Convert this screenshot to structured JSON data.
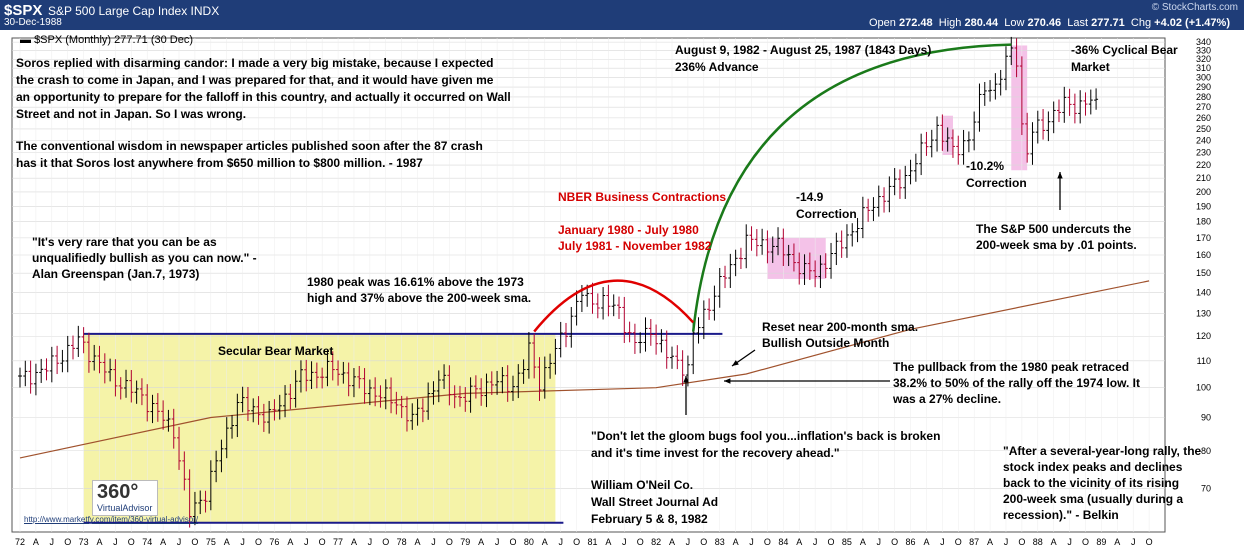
{
  "header": {
    "symbol": "$SPX",
    "name": "S&P 500 Large Cap Index INDX",
    "date": "30-Dec-1988",
    "copyright": "© StockCharts.com",
    "open_label": "Open",
    "open": "272.48",
    "high_label": "High",
    "high": "280.44",
    "low_label": "Low",
    "low": "270.46",
    "last_label": "Last",
    "last": "277.71",
    "chg_label": "Chg",
    "chg": "+4.02 (+1.47%)"
  },
  "legend": "$SPX (Monthly) 277.71 (30 Dec)",
  "logo": {
    "number": "360°",
    "text": "VirtualAdvisor"
  },
  "url": "http://www.marketfy.com/item/360-virtual-advisor/",
  "annotations": {
    "soros_1": "Soros replied with disarming candor: I made a very big mistake, because I expected",
    "soros_2": "the crash to come in Japan, and I was prepared for that, and it would have given me",
    "soros_3": "an opportunity to prepare for the falloff in this country, and actually it occurred on Wall",
    "soros_4": "Street and not in Japan. So I was wrong.",
    "soros_5": "The conventional wisdom in newspaper articles published soon after the 87 crash",
    "soros_6": "has it that Soros lost anywhere from $650 million to $800 million. - 1987",
    "greenspan_1": "\"It's very rare that you can be as",
    "greenspan_2": "unqualifiedly bullish as you can now.\" -",
    "greenspan_3": "Alan Greenspan (Jan.7, 1973)",
    "peak_1": "1980 peak was 16.61% above the 1973",
    "peak_2": "high and 37% above the 200-week sma.",
    "secular": "Secular Bear Market",
    "nber_title": "NBER Business Contractions",
    "nber_1": "January 1980 - July 1980",
    "nber_2": "July 1981 - November 1982",
    "bull_1": "August 9, 1982 - August 25, 1987 (1843 Days)",
    "bull_2": "236% Advance",
    "corr149_1": "-14.9",
    "corr149_2": "Correction",
    "corr102_1": "-10.2%",
    "corr102_2": "Correction",
    "bear36_1": "-36% Cyclical Bear",
    "bear36_2": "Market",
    "undercut_1": "The S&P 500 undercuts the",
    "undercut_2": "200-week sma by .01 points.",
    "reset_1": "Reset near 200-month sma.",
    "reset_2": "Bullish Outside Month",
    "pullback_1": "The pullback from the 1980 peak retraced",
    "pullback_2": "38.2% to 50% of the rally off the 1974 low. It",
    "pullback_3": "was a 27% decline.",
    "oneil_1": "\"Don't let the gloom bugs fool you...inflation's back is broken",
    "oneil_2": "and it's time invest for the recovery ahead.\"",
    "oneil_3": "William O'Neil Co.",
    "oneil_4": "Wall Street Journal Ad",
    "oneil_5": "February 5 & 8, 1982",
    "belkin_1": "\"After a several-year-long rally, the",
    "belkin_2": "stock index peaks and declines",
    "belkin_3": "back to the vicinity of its rising",
    "belkin_4": "200-week sma (usually during a",
    "belkin_5": "recession).\" - Belkin"
  },
  "colors": {
    "header_bg": "#1f3d78",
    "secular_fill": "#f5f3a8",
    "correction_fill": "#f4c2e8",
    "bar_up": "#000000",
    "bar_down": "#b00030",
    "sma": "#a0522d",
    "arc_green": "#1a7a1a",
    "arc_red": "#e00000",
    "hline": "#1a1a8a"
  },
  "chart_data": {
    "type": "ohlc",
    "title": "$SPX (Monthly) 277.71 (30 Dec)",
    "scale": "log",
    "ylim": [
      60,
      345
    ],
    "y_ticks": [
      70,
      80,
      90,
      100,
      110,
      120,
      130,
      140,
      150,
      160,
      170,
      180,
      190,
      200,
      210,
      220,
      230,
      240,
      250,
      260,
      270,
      280,
      290,
      300,
      310,
      320,
      330,
      340
    ],
    "x_range": [
      "1972-01",
      "1989-12"
    ],
    "x_tick_labels": [
      "72",
      "A",
      "J",
      "O",
      "73",
      "A",
      "J",
      "O",
      "74",
      "A",
      "J",
      "O",
      "75",
      "A",
      "J",
      "O",
      "76",
      "A",
      "J",
      "O",
      "77",
      "A",
      "J",
      "O",
      "78",
      "A",
      "J",
      "O",
      "79",
      "A",
      "J",
      "O",
      "80",
      "A",
      "J",
      "O",
      "81",
      "A",
      "J",
      "O",
      "82",
      "A",
      "J",
      "O",
      "83",
      "A",
      "J",
      "O",
      "84",
      "A",
      "J",
      "O",
      "85",
      "A",
      "J",
      "O",
      "86",
      "A",
      "J",
      "O",
      "87",
      "A",
      "J",
      "O",
      "88",
      "A",
      "J",
      "O",
      "89",
      "A",
      "J",
      "O"
    ],
    "close_anchors": [
      [
        "1972-01",
        103
      ],
      [
        "1972-06",
        107
      ],
      [
        "1972-12",
        118
      ],
      [
        "1973-01",
        116
      ],
      [
        "1973-06",
        104
      ],
      [
        "1973-12",
        97
      ],
      [
        "1974-06",
        86
      ],
      [
        "1974-09",
        64
      ],
      [
        "1974-12",
        69
      ],
      [
        "1975-06",
        95
      ],
      [
        "1975-12",
        90
      ],
      [
        "1976-06",
        104
      ],
      [
        "1976-09",
        105
      ],
      [
        "1976-12",
        107
      ],
      [
        "1977-06",
        100
      ],
      [
        "1977-12",
        95
      ],
      [
        "1978-03",
        89
      ],
      [
        "1978-08",
        103
      ],
      [
        "1978-12",
        96
      ],
      [
        "1979-06",
        102
      ],
      [
        "1979-10",
        101
      ],
      [
        "1979-12",
        108
      ],
      [
        "1980-01",
        114
      ],
      [
        "1980-03",
        102
      ],
      [
        "1980-06",
        114
      ],
      [
        "1980-11",
        140
      ],
      [
        "1980-12",
        136
      ],
      [
        "1981-03",
        136
      ],
      [
        "1981-06",
        131
      ],
      [
        "1981-09",
        116
      ],
      [
        "1981-12",
        123
      ],
      [
        "1982-03",
        112
      ],
      [
        "1982-07",
        107
      ],
      [
        "1982-08",
        120
      ],
      [
        "1982-12",
        140
      ],
      [
        "1983-06",
        168
      ],
      [
        "1983-12",
        165
      ],
      [
        "1984-05",
        151
      ],
      [
        "1984-07",
        150
      ],
      [
        "1984-12",
        167
      ],
      [
        "1985-06",
        192
      ],
      [
        "1985-12",
        211
      ],
      [
        "1986-06",
        251
      ],
      [
        "1986-09",
        231
      ],
      [
        "1986-12",
        242
      ],
      [
        "1987-03",
        291
      ],
      [
        "1987-05",
        290
      ],
      [
        "1987-08",
        330
      ],
      [
        "1987-09",
        322
      ],
      [
        "1987-10",
        252
      ],
      [
        "1987-11",
        230
      ],
      [
        "1987-12",
        247
      ],
      [
        "1988-03",
        259
      ],
      [
        "1988-06",
        273
      ],
      [
        "1988-09",
        272
      ],
      [
        "1988-12",
        277.71
      ]
    ],
    "sma_200w": [
      [
        "1972-01",
        78
      ],
      [
        "1975-01",
        90
      ],
      [
        "1979-01",
        98
      ],
      [
        "1982-01",
        100
      ],
      [
        "1983-06",
        105
      ],
      [
        "1986-01",
        123
      ],
      [
        "1989-10",
        146
      ]
    ],
    "series": [
      {
        "name": "$SPX (Monthly)",
        "type": "ohlc"
      },
      {
        "name": "200-week sma",
        "type": "line"
      }
    ],
    "horizontal_lines": [
      {
        "y": 121,
        "from": "1973-01",
        "to": "1982-12"
      },
      {
        "y": 62,
        "from": "1973-01",
        "to": "1980-06"
      }
    ],
    "shaded_regions": [
      {
        "label": "Secular Bear Market",
        "from": "1973-01",
        "to": "1980-06",
        "y": [
          62,
          121
        ]
      },
      {
        "label": "-14.9 Correction",
        "from": "1983-10",
        "to": "1984-09",
        "y": [
          147,
          170
        ]
      },
      {
        "label": "-10.2% Correction",
        "from": "1986-07",
        "to": "1986-09",
        "y": [
          228,
          262
        ]
      },
      {
        "label": "-36% Cyclical Bear Market",
        "from": "1987-08",
        "to": "1987-11",
        "y": [
          216,
          336
        ]
      }
    ]
  }
}
